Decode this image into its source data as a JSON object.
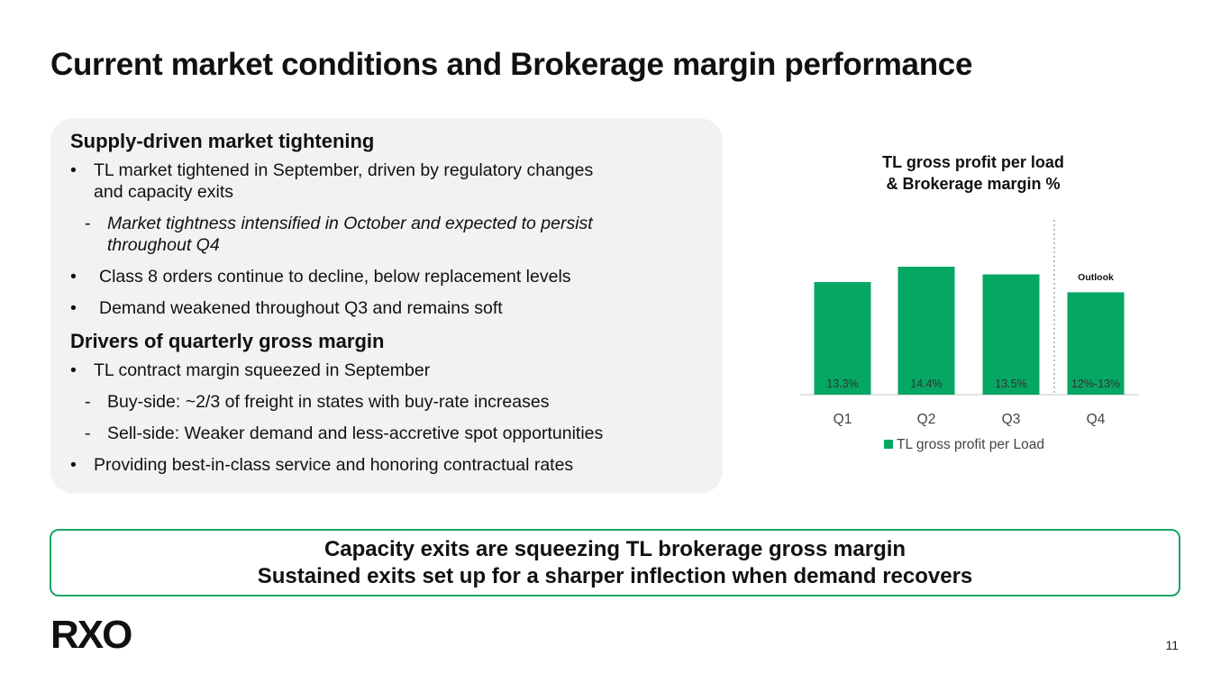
{
  "title": "Current market conditions and Brokerage margin performance",
  "left_panel": {
    "section1_heading": "Supply-driven market tightening",
    "bullet1_line1": "TL market tightened in September, driven by regulatory changes",
    "bullet1_line2": "and capacity exits",
    "sub1_line1": "Market tightness intensified in October and expected to persist",
    "sub1_line2": "throughout Q4",
    "bullet2": "Class 8 orders continue to decline, below replacement levels",
    "bullet3": "Demand weakened throughout Q3 and remains soft",
    "section2_heading": "Drivers of quarterly gross margin",
    "bullet4": "TL contract margin squeezed in September",
    "sub2": "Buy-side: ~2/3 of freight in states with buy-rate increases",
    "sub3": "Sell-side: Weaker demand and less-accretive spot opportunities",
    "bullet5": "Providing best-in-class service and honoring contractual rates",
    "bullet_mark": "•",
    "dash_mark": "-"
  },
  "chart_data": {
    "type": "bar",
    "title_line1": "TL gross profit per load",
    "title_line2": "& Brokerage margin %",
    "categories": [
      "Q1",
      "Q2",
      "Q3",
      "Q4"
    ],
    "series": [
      {
        "name": "TL gross profit per Load",
        "values": [
          0.88,
          1.0,
          0.94,
          0.8
        ],
        "value_scale": "relative to Q2 (no y-axis printed)",
        "color": "#06a763"
      }
    ],
    "bar_labels": [
      "13.3%",
      "14.4%",
      "13.5%",
      "12%-13%"
    ],
    "annotation": "Outlook",
    "outlook_divider_before": "Q4",
    "legend_position": "bottom",
    "grid": false,
    "label_color": "#333333",
    "baseline_color": "#d9d9d9"
  },
  "callout": {
    "line1": "Capacity exits are squeezing TL brokerage gross margin",
    "line2": "Sustained exits set up for a sharper inflection when demand recovers",
    "border_color": "#1aa566"
  },
  "footer": {
    "logo_text": "RXO",
    "page_number": "11"
  }
}
